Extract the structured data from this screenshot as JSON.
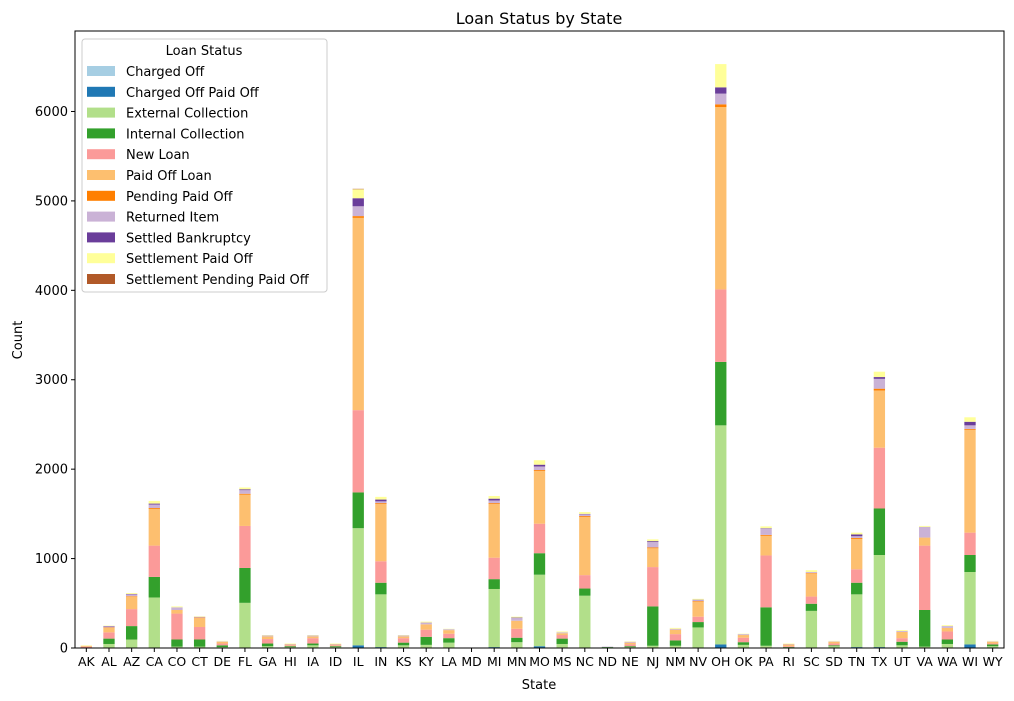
{
  "chart_data": {
    "type": "bar",
    "stacked": true,
    "title": "Loan Status by State",
    "xlabel": "State",
    "ylabel": "Count",
    "ylim": [
      0,
      6900
    ],
    "yticks": [
      0,
      1000,
      2000,
      3000,
      4000,
      5000,
      6000
    ],
    "grid": false,
    "legend": {
      "title": "Loan Status",
      "placement": "top-left"
    },
    "categories": [
      "AK",
      "AL",
      "AZ",
      "CA",
      "CO",
      "CT",
      "DE",
      "FL",
      "GA",
      "HI",
      "IA",
      "ID",
      "IL",
      "IN",
      "KS",
      "KY",
      "LA",
      "MD",
      "MI",
      "MN",
      "MO",
      "MS",
      "NC",
      "ND",
      "NE",
      "NJ",
      "NM",
      "NV",
      "OH",
      "OK",
      "PA",
      "RI",
      "SC",
      "SD",
      "TN",
      "TX",
      "UT",
      "VA",
      "WA",
      "WI",
      "WY"
    ],
    "series": [
      {
        "name": "Charged Off",
        "color": "#a6cee3",
        "values": [
          0,
          0,
          0,
          0,
          0,
          0,
          0,
          0,
          0,
          0,
          0,
          0,
          0,
          0,
          0,
          0,
          0,
          0,
          0,
          0,
          0,
          0,
          0,
          0,
          0,
          0,
          0,
          0,
          0,
          0,
          0,
          0,
          0,
          0,
          0,
          0,
          0,
          0,
          0,
          0,
          0
        ]
      },
      {
        "name": "Charged Off Paid Off",
        "color": "#1f78b4",
        "values": [
          0,
          5,
          5,
          5,
          5,
          5,
          0,
          5,
          0,
          0,
          0,
          0,
          30,
          10,
          0,
          5,
          0,
          0,
          10,
          5,
          20,
          5,
          5,
          0,
          0,
          5,
          5,
          0,
          40,
          5,
          5,
          0,
          5,
          0,
          10,
          10,
          0,
          5,
          5,
          40,
          0
        ]
      },
      {
        "name": "External Collection",
        "color": "#b2df8a",
        "values": [
          5,
          40,
          90,
          560,
          10,
          10,
          10,
          500,
          20,
          10,
          30,
          10,
          1310,
          590,
          30,
          30,
          60,
          0,
          650,
          60,
          800,
          40,
          580,
          0,
          10,
          20,
          20,
          230,
          2450,
          30,
          20,
          0,
          410,
          20,
          590,
          1030,
          30,
          10,
          40,
          810,
          20
        ]
      },
      {
        "name": "Internal Collection",
        "color": "#33a02c",
        "values": [
          0,
          60,
          150,
          230,
          80,
          80,
          20,
          390,
          30,
          10,
          20,
          10,
          400,
          130,
          30,
          90,
          50,
          0,
          110,
          50,
          240,
          60,
          80,
          10,
          10,
          440,
          60,
          60,
          710,
          30,
          430,
          10,
          80,
          10,
          130,
          520,
          40,
          410,
          50,
          190,
          20
        ]
      },
      {
        "name": "New Loan",
        "color": "#fb9a99",
        "values": [
          10,
          70,
          190,
          350,
          290,
          140,
          20,
          470,
          50,
          10,
          60,
          10,
          920,
          240,
          50,
          80,
          50,
          0,
          240,
          100,
          330,
          40,
          150,
          0,
          20,
          440,
          70,
          60,
          810,
          50,
          580,
          10,
          80,
          20,
          150,
          680,
          40,
          720,
          90,
          250,
          10
        ]
      },
      {
        "name": "Paid Off Loan",
        "color": "#fdbf6f",
        "values": [
          10,
          50,
          140,
          410,
          40,
          100,
          20,
          350,
          30,
          10,
          20,
          10,
          2150,
          640,
          20,
          60,
          40,
          0,
          600,
          90,
          590,
          20,
          650,
          0,
          20,
          210,
          50,
          170,
          2040,
          30,
          220,
          20,
          260,
          20,
          340,
          640,
          70,
          90,
          40,
          1150,
          20
        ]
      },
      {
        "name": "Pending Paid Off",
        "color": "#ff7f00",
        "values": [
          0,
          5,
          5,
          10,
          0,
          5,
          0,
          10,
          0,
          0,
          0,
          0,
          20,
          10,
          0,
          0,
          0,
          0,
          10,
          0,
          10,
          0,
          10,
          0,
          0,
          10,
          0,
          5,
          30,
          0,
          10,
          0,
          5,
          0,
          10,
          20,
          0,
          0,
          0,
          10,
          0
        ]
      },
      {
        "name": "Returned Item",
        "color": "#cab2d6",
        "values": [
          0,
          10,
          20,
          40,
          30,
          10,
          5,
          40,
          10,
          5,
          10,
          5,
          110,
          20,
          10,
          20,
          10,
          0,
          30,
          30,
          40,
          10,
          20,
          5,
          10,
          60,
          10,
          10,
          120,
          10,
          70,
          5,
          10,
          5,
          20,
          110,
          10,
          120,
          20,
          40,
          5
        ]
      },
      {
        "name": "Settled Bankruptcy",
        "color": "#6a3d9a",
        "values": [
          0,
          5,
          5,
          10,
          0,
          0,
          0,
          10,
          0,
          0,
          0,
          0,
          90,
          20,
          0,
          0,
          0,
          0,
          20,
          5,
          20,
          0,
          5,
          0,
          0,
          10,
          0,
          5,
          70,
          0,
          5,
          0,
          0,
          0,
          20,
          20,
          0,
          0,
          0,
          40,
          0
        ]
      },
      {
        "name": "Settlement Paid Off",
        "color": "#ffff99",
        "values": [
          5,
          5,
          10,
          30,
          10,
          5,
          5,
          20,
          5,
          5,
          5,
          5,
          100,
          30,
          5,
          10,
          5,
          0,
          30,
          10,
          50,
          10,
          20,
          0,
          5,
          20,
          10,
          10,
          260,
          5,
          20,
          5,
          20,
          5,
          20,
          60,
          10,
          10,
          10,
          50,
          5
        ]
      },
      {
        "name": "Settlement Pending Paid Off",
        "color": "#b15928",
        "values": [
          0,
          0,
          0,
          0,
          0,
          0,
          0,
          0,
          0,
          0,
          0,
          0,
          5,
          0,
          0,
          0,
          0,
          0,
          0,
          0,
          0,
          0,
          0,
          0,
          0,
          0,
          0,
          0,
          0,
          0,
          0,
          0,
          0,
          0,
          0,
          0,
          0,
          0,
          0,
          0,
          0
        ]
      }
    ]
  }
}
